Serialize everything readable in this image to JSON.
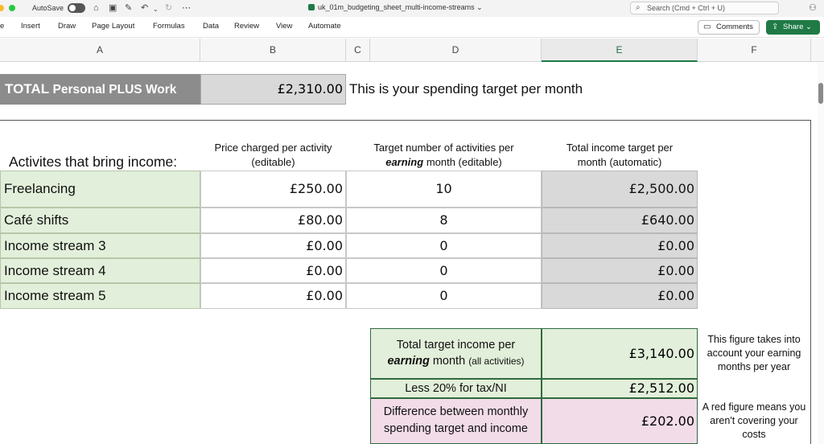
{
  "titlebar": {
    "autosave_label": "AutoSave",
    "doc_title": "uk_01m_budgeting_sheet_multi-income-streams",
    "search_placeholder": "Search (Cmd + Ctrl + U)"
  },
  "ribbon": {
    "tabs": [
      {
        "label": "e",
        "name": "tab-home"
      },
      {
        "label": "Insert",
        "name": "tab-insert"
      },
      {
        "label": "Draw",
        "name": "tab-draw"
      },
      {
        "label": "Page Layout",
        "name": "tab-page-layout"
      },
      {
        "label": "Formulas",
        "name": "tab-formulas"
      },
      {
        "label": "Data",
        "name": "tab-data"
      },
      {
        "label": "Review",
        "name": "tab-review"
      },
      {
        "label": "View",
        "name": "tab-view"
      },
      {
        "label": "Automate",
        "name": "tab-automate"
      }
    ],
    "comments_label": "Comments",
    "share_label": "Share"
  },
  "columns": [
    "A",
    "B",
    "C",
    "D",
    "E",
    "F"
  ],
  "selected_column": "E",
  "sheet": {
    "total_label": "TOTAL Personal PLUS Work",
    "total_label_prefix": "TOTAL",
    "total_label_suffix": "Personal PLUS Work",
    "total_value": "£2,310.00",
    "spend_note": "This is your spending target per month",
    "activities_label": "Activites that bring income:",
    "header_price_line1": "Price charged per activity",
    "header_price_line2": "(editable)",
    "header_target_line1": "Target number of activities per",
    "header_target_bold": "earning",
    "header_target_line2": "month (editable)",
    "header_total_line1": "Total income target per",
    "header_total_line2": "month (automatic)",
    "rows": [
      {
        "label": "Freelancing",
        "price": "£250.00",
        "count": "10",
        "total": "£2,500.00"
      },
      {
        "label": "Café shifts",
        "price": "£80.00",
        "count": "8",
        "total": "£640.00"
      },
      {
        "label": "Income stream 3",
        "price": "£0.00",
        "count": "0",
        "total": "£0.00"
      },
      {
        "label": "Income stream 4",
        "price": "£0.00",
        "count": "0",
        "total": "£0.00"
      },
      {
        "label": "Income stream 5",
        "price": "£0.00",
        "count": "0",
        "total": "£0.00"
      }
    ],
    "summary": {
      "total_target_line1": "Total target income per",
      "total_target_bold": "earning",
      "total_target_line2": "month",
      "total_target_small": "(all activities)",
      "total_target_value": "£3,140.00",
      "total_note": "This figure takes into account your earning months per year",
      "less_tax_label": "Less 20% for tax/NI",
      "less_tax_value": "£2,512.00",
      "difference_line1": "Difference between monthly",
      "difference_line2": "spending target and income",
      "difference_value": "£202.00",
      "difference_note": "A red figure means you aren't covering your costs"
    }
  },
  "colors": {
    "green_fill": "#e2efda",
    "grey_fill": "#d9d9d9",
    "pink_fill": "#f2dce8",
    "total_label_fill": "#8c8c8c",
    "share_green": "#1f7a45"
  }
}
